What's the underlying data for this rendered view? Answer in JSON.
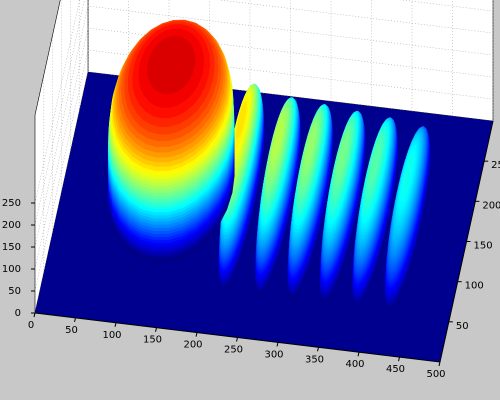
{
  "chart_data": {
    "type": "surface",
    "x": [
      130,
      220,
      265,
      305,
      345,
      385,
      425
    ],
    "values": [
      280,
      200,
      170,
      160,
      150,
      140,
      120
    ],
    "xlim": [
      0,
      500
    ],
    "ylim": [
      0,
      300
    ],
    "zlim": [
      0,
      300
    ],
    "xticks": [
      0,
      50,
      100,
      150,
      200,
      250,
      300,
      350,
      400,
      450,
      500
    ],
    "yticks": [
      50,
      100,
      150,
      200,
      250
    ],
    "zticks": [
      0,
      50,
      100,
      150,
      200,
      250
    ],
    "grid": true,
    "colormap": "jet",
    "floor_color": "#00008f"
  }
}
